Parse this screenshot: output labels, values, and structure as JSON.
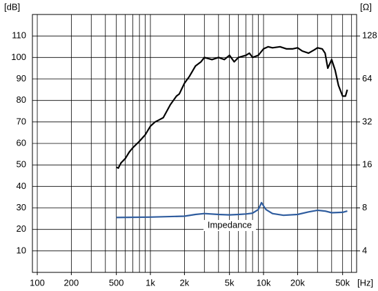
{
  "chart_data": {
    "type": "line",
    "y_unit_label": "[dB]",
    "y2_unit_label": "[Ω]",
    "x_unit_label": "[Hz]",
    "xscale": "log",
    "y2scale": "log",
    "xlim": [
      90.6,
      66500
    ],
    "xticks": [
      {
        "value": 100,
        "label": "100"
      },
      {
        "value": 200,
        "label": "200"
      },
      {
        "value": 500,
        "label": "500"
      },
      {
        "value": 1000,
        "label": "1k"
      },
      {
        "value": 2000,
        "label": "2k"
      },
      {
        "value": 5000,
        "label": "5k"
      },
      {
        "value": 10000,
        "label": "10k"
      },
      {
        "value": 20000,
        "label": "20k"
      },
      {
        "value": 50000,
        "label": "50k"
      }
    ],
    "xgrid": [
      100,
      200,
      300,
      400,
      500,
      600,
      700,
      800,
      900,
      1000,
      2000,
      3000,
      4000,
      5000,
      6000,
      7000,
      8000,
      9000,
      10000,
      20000,
      30000,
      40000,
      50000,
      60000
    ],
    "ylim": [
      0,
      120
    ],
    "yticks": [
      10,
      20,
      30,
      40,
      50,
      60,
      70,
      80,
      90,
      100,
      110
    ],
    "ygrid": [
      0,
      10,
      20,
      30,
      40,
      50,
      60,
      70,
      80,
      90,
      100,
      110,
      120
    ],
    "y2lim": [
      2.828,
      181.02
    ],
    "y2ticks": [
      4,
      8,
      16,
      32,
      64,
      128
    ],
    "grid": true,
    "series": [
      {
        "color": "#000000",
        "x": [
          500,
          520,
          550,
          600,
          650,
          700,
          800,
          900,
          1000,
          1100,
          1200,
          1300,
          1500,
          1700,
          1800,
          2000,
          2200,
          2500,
          2800,
          3000,
          3500,
          4000,
          4500,
          5000,
          5500,
          6000,
          7000,
          7500,
          8000,
          9000,
          10000,
          11000,
          12000,
          14000,
          16000,
          18000,
          20000,
          22000,
          25000,
          28000,
          30000,
          33000,
          35000,
          37000,
          40000,
          43000,
          46000,
          50000,
          53000,
          55000
        ],
        "values": [
          49,
          48.5,
          51,
          53,
          56,
          58,
          61,
          64,
          68,
          70,
          71,
          72,
          78,
          82,
          83,
          88,
          91,
          96,
          98,
          100,
          99,
          100,
          99,
          101,
          98,
          100,
          101,
          102,
          100,
          101,
          104,
          105,
          104.5,
          105,
          104,
          104,
          104.5,
          103,
          102,
          103.5,
          104.5,
          104,
          102,
          95,
          99,
          94,
          87,
          82,
          82,
          85
        ]
      },
      {
        "name": "Impedance",
        "color": "#2e5c9e",
        "axis": "y2",
        "x": [
          500,
          1000,
          2000,
          2500,
          3000,
          4000,
          5000,
          6000,
          7000,
          8000,
          9000,
          9600,
          10500,
          12000,
          15000,
          20000,
          25000,
          30000,
          35000,
          40000,
          50000,
          55000
        ],
        "values": [
          6.85,
          6.9,
          7.0,
          7.2,
          7.3,
          7.2,
          7.15,
          7.2,
          7.25,
          7.35,
          7.8,
          8.7,
          7.8,
          7.3,
          7.1,
          7.2,
          7.5,
          7.7,
          7.6,
          7.4,
          7.45,
          7.6
        ]
      }
    ]
  }
}
